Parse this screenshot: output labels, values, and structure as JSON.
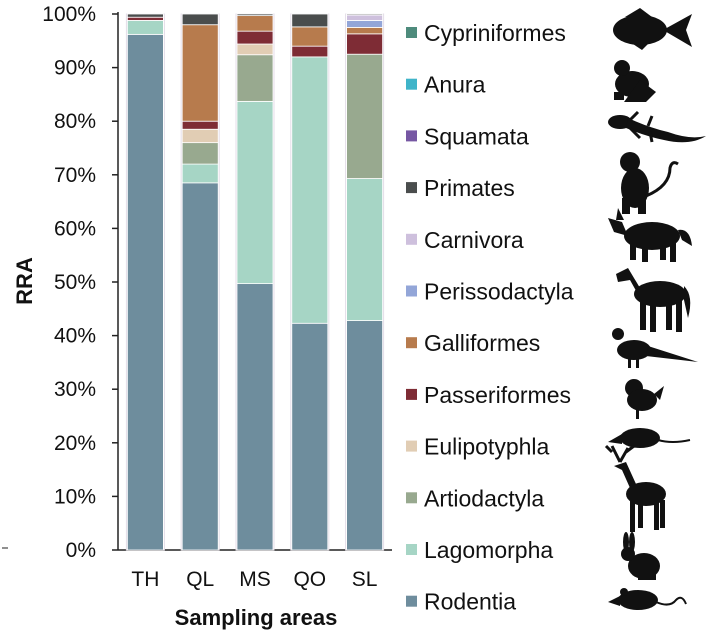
{
  "chart_data": {
    "type": "bar",
    "stacked": true,
    "categories": [
      "TH",
      "QL",
      "MS",
      "QO",
      "SL"
    ],
    "xlabel": "Sampling areas",
    "ylabel": "RRA",
    "ylim": [
      0,
      100
    ],
    "yticks": [
      "0%",
      "10%",
      "20%",
      "30%",
      "40%",
      "50%",
      "60%",
      "70%",
      "80%",
      "90%",
      "100%"
    ],
    "series": [
      {
        "name": "Rodentia",
        "color": "#6e8d9d",
        "values": [
          96.2,
          68.5,
          49.7,
          42.3,
          42.8
        ]
      },
      {
        "name": "Lagomorpha",
        "color": "#a6d5c5",
        "values": [
          2.6,
          3.5,
          34.0,
          49.7,
          26.5
        ]
      },
      {
        "name": "Artiodactyla",
        "color": "#98a98f",
        "values": [
          0,
          4.0,
          8.7,
          0,
          23.2
        ]
      },
      {
        "name": "Eulipotyphla",
        "color": "#e1cdb4",
        "values": [
          0,
          2.5,
          2.0,
          0,
          0
        ]
      },
      {
        "name": "Passeriformes",
        "color": "#7e2c35",
        "values": [
          0.6,
          1.5,
          2.4,
          2.0,
          3.8
        ]
      },
      {
        "name": "Galliformes",
        "color": "#b77b4d",
        "values": [
          0,
          18.0,
          2.9,
          3.6,
          1.2
        ]
      },
      {
        "name": "Perissodactyla",
        "color": "#93a6d8",
        "values": [
          0,
          0,
          0,
          0,
          1.3
        ]
      },
      {
        "name": "Carnivora",
        "color": "#cec0dd",
        "values": [
          0,
          0,
          0,
          0,
          1.0
        ]
      },
      {
        "name": "Primates",
        "color": "#4a4d4d",
        "values": [
          0.6,
          2.0,
          0.3,
          2.4,
          0.2
        ]
      },
      {
        "name": "Squamata",
        "color": "#7657a3",
        "values": [
          0,
          0,
          0,
          0,
          0
        ]
      },
      {
        "name": "Anura",
        "color": "#3fb4c9",
        "values": [
          0,
          0,
          0,
          0,
          0
        ]
      },
      {
        "name": "Cypriniformes",
        "color": "#4e8b7c",
        "values": [
          0,
          0,
          0,
          0,
          0
        ]
      }
    ],
    "legend_order": [
      "Cypriniformes",
      "Anura",
      "Squamata",
      "Primates",
      "Carnivora",
      "Perissodactyla",
      "Galliformes",
      "Passeriformes",
      "Eulipotyphla",
      "Artiodactyla",
      "Lagomorpha",
      "Rodentia"
    ],
    "legend_position": "right",
    "legend_icons": [
      "fish-icon",
      "frog-icon",
      "lizard-icon",
      "monkey-icon",
      "wolf-icon",
      "horse-icon",
      "pheasant-icon",
      "bird-icon",
      "shrew-icon",
      "deer-icon",
      "rabbit-icon",
      "rat-icon"
    ]
  }
}
